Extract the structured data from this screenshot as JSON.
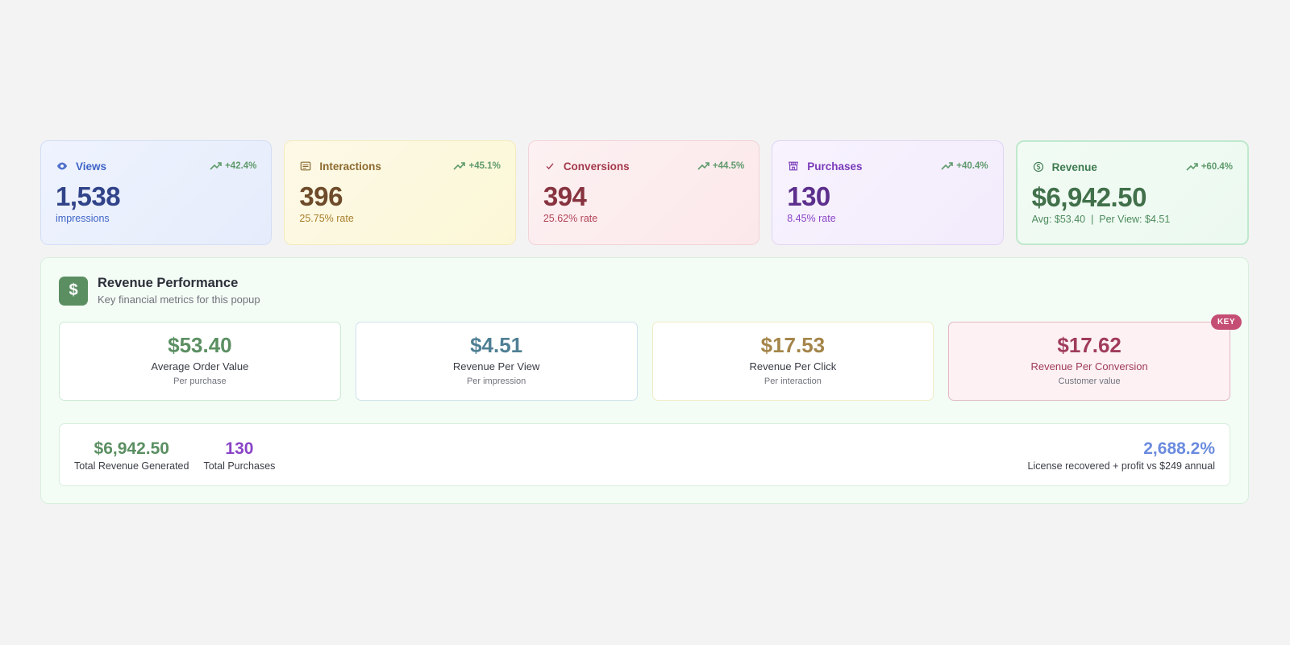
{
  "stats": [
    {
      "key": "views",
      "label": "Views",
      "icon": "eye-icon",
      "trend": "+42.4%",
      "value": "1,538",
      "sub": "impressions"
    },
    {
      "key": "interactions",
      "label": "Interactions",
      "icon": "list-icon",
      "trend": "+45.1%",
      "value": "396",
      "sub": "25.75% rate"
    },
    {
      "key": "conversions",
      "label": "Conversions",
      "icon": "check-icon",
      "trend": "+44.5%",
      "value": "394",
      "sub": "25.62% rate"
    },
    {
      "key": "purchases",
      "label": "Purchases",
      "icon": "store-icon",
      "trend": "+40.4%",
      "value": "130",
      "sub": "8.45% rate"
    },
    {
      "key": "revenue",
      "label": "Revenue",
      "icon": "dollar-circle-icon",
      "trend": "+60.4%",
      "value": "$6,942.50",
      "sub": "Avg: $53.40  |  Per View: $4.51"
    }
  ],
  "performance": {
    "title": "Revenue Performance",
    "subtitle": "Key financial metrics for this popup",
    "icon_glyph": "$",
    "metrics": [
      {
        "value": "$53.40",
        "label": "Average Order Value",
        "note": "Per purchase"
      },
      {
        "value": "$4.51",
        "label": "Revenue Per View",
        "note": "Per impression"
      },
      {
        "value": "$17.53",
        "label": "Revenue Per Click",
        "note": "Per interaction"
      },
      {
        "value": "$17.62",
        "label": "Revenue Per Conversion",
        "note": "Customer value",
        "badge": "KEY"
      }
    ],
    "summary": {
      "total_revenue": {
        "value": "$6,942.50",
        "label": "Total Revenue Generated"
      },
      "total_purchases": {
        "value": "130",
        "label": "Total Purchases"
      },
      "roi": {
        "value": "2,688.2%",
        "label": "License recovered + profit vs $249 annual"
      }
    }
  },
  "colors": {
    "accent_green": "#5b8f62",
    "trend_green": "#5e9a6b",
    "key_badge": "#c54e74"
  }
}
